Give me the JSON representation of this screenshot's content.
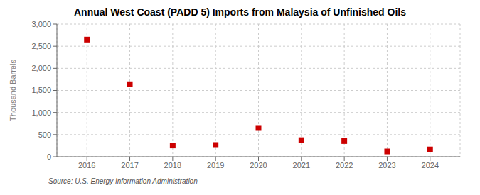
{
  "chart_data": {
    "type": "scatter",
    "title": "Annual West Coast (PADD 5) Imports from Malaysia of Unfinished Oils",
    "ylabel": "Thousand Barrels",
    "x": [
      2016,
      2017,
      2018,
      2019,
      2020,
      2021,
      2022,
      2023,
      2024
    ],
    "values": [
      2650,
      1640,
      255,
      265,
      650,
      375,
      355,
      120,
      165
    ],
    "color": "#cc0000",
    "marker": "square",
    "xlim": [
      2015.3,
      2024.7
    ],
    "xticks": [
      2016,
      2017,
      2018,
      2019,
      2020,
      2021,
      2022,
      2023,
      2024
    ],
    "ylim": [
      0,
      3000
    ],
    "yticks": [
      0,
      500,
      {
        "value": 1000,
        "label": "1,000"
      },
      {
        "value": 1500,
        "label": "1,500"
      },
      {
        "value": 2000,
        "label": "2,000"
      },
      {
        "value": 2500,
        "label": "2,500"
      },
      {
        "value": 3000,
        "label": "3,000"
      }
    ],
    "grid": true,
    "annotations": [
      "Source: U.S. Energy Information Administration"
    ]
  }
}
